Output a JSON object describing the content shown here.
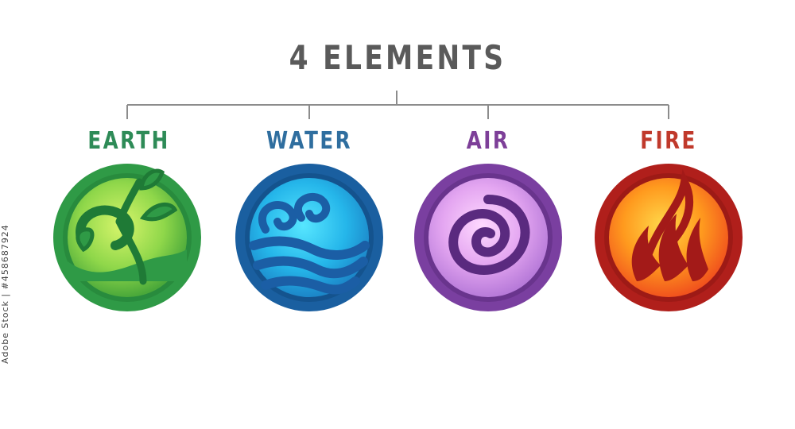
{
  "title": "4 ELEMENTS",
  "side_text": "Adobe Stock | #458687924",
  "elements": [
    {
      "label": "EARTH",
      "icon": "leaf-sprout-icon",
      "color": "#2e8b57"
    },
    {
      "label": "WATER",
      "icon": "water-wave-icon",
      "color": "#2f6e9f"
    },
    {
      "label": "AIR",
      "icon": "air-swirl-icon",
      "color": "#7d3f98"
    },
    {
      "label": "FIRE",
      "icon": "fire-flame-icon",
      "color": "#c0392b"
    }
  ]
}
